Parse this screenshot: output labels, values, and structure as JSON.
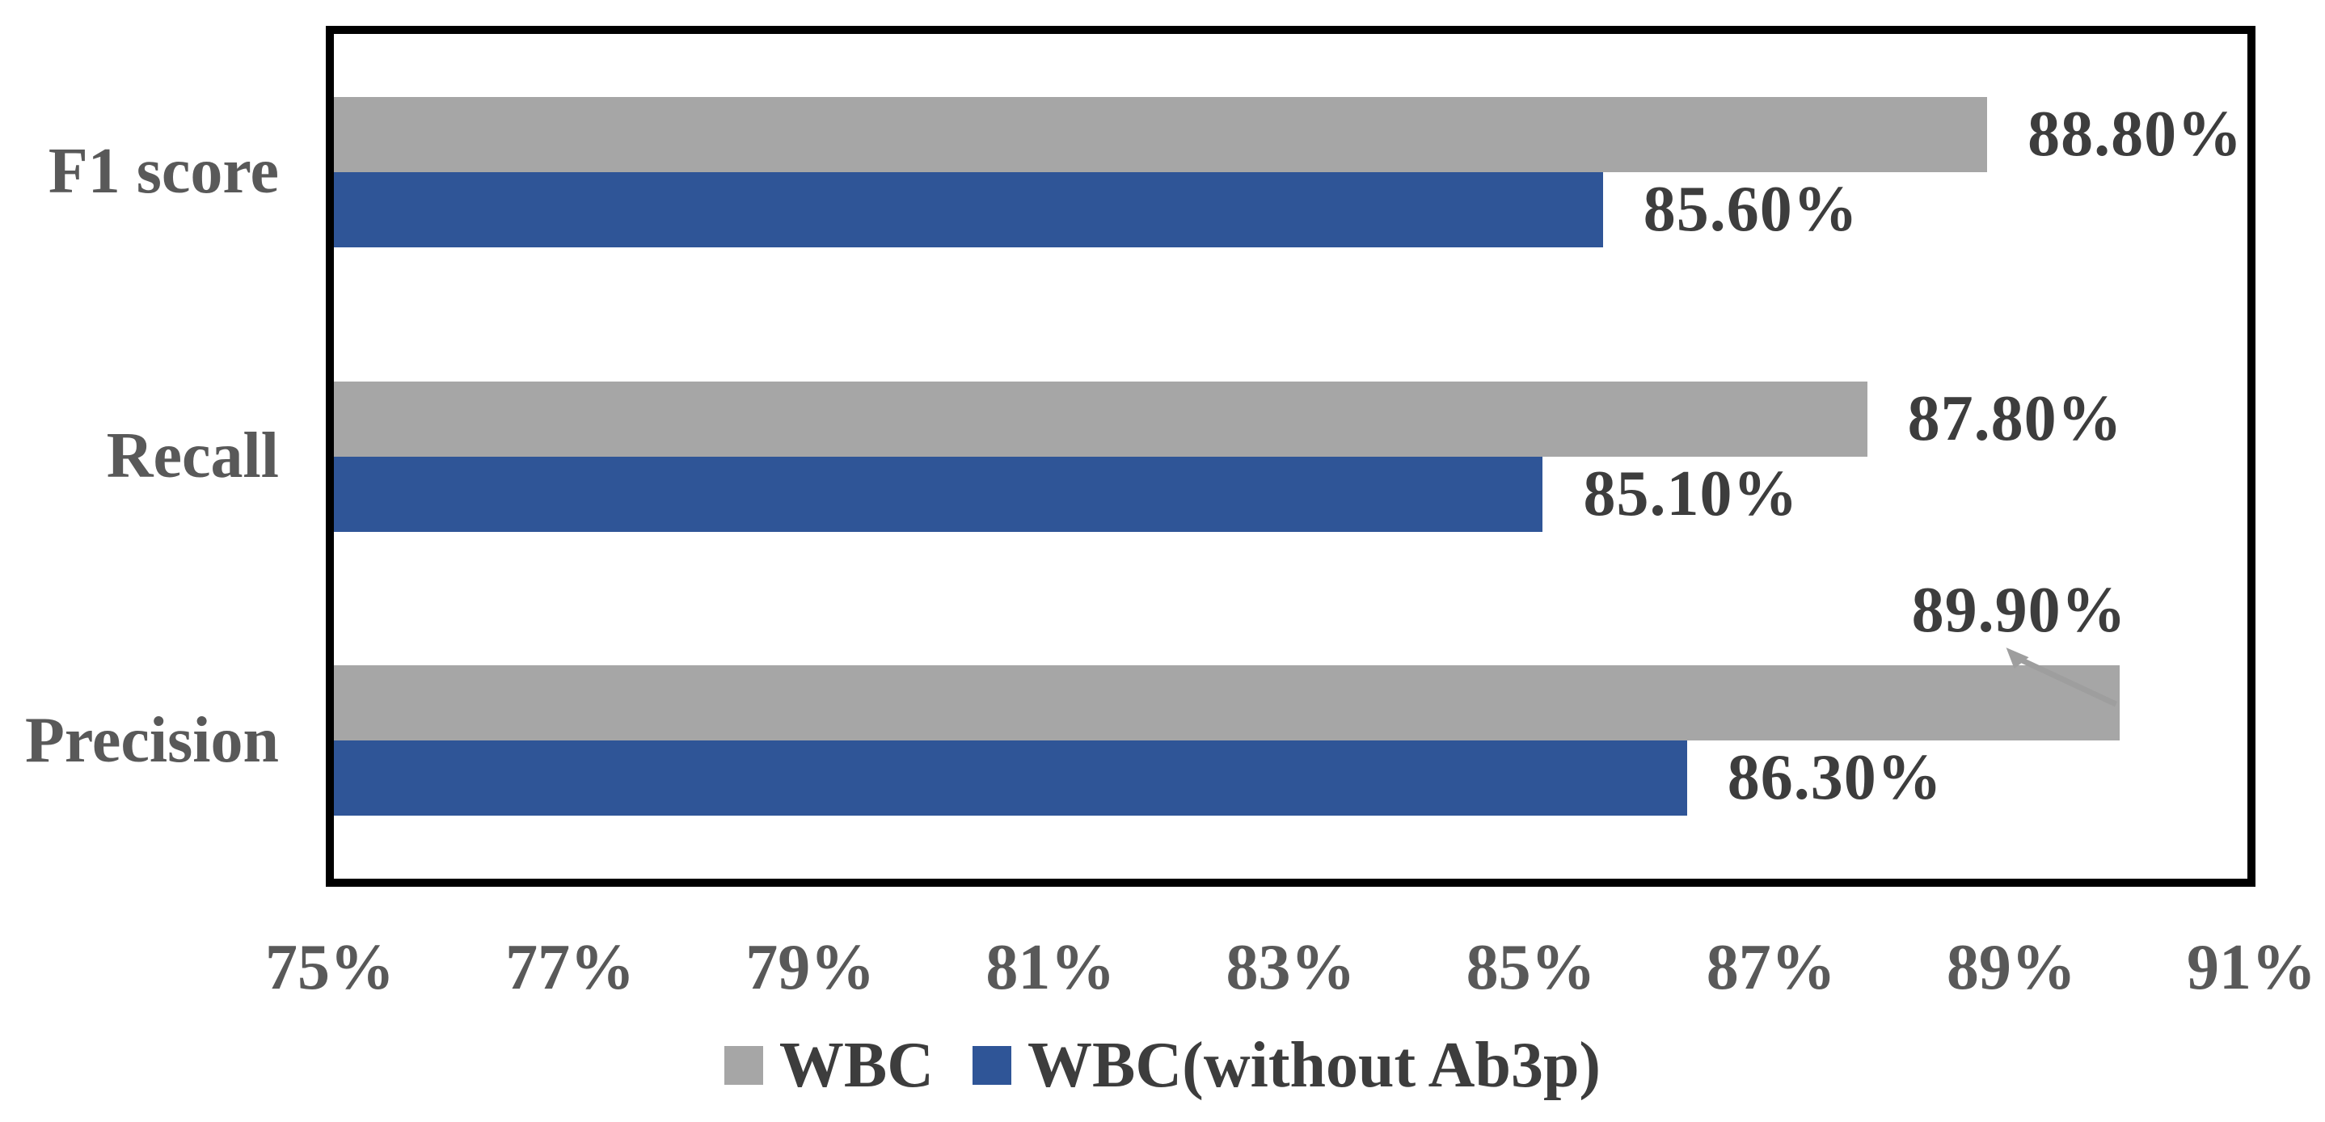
{
  "chart_data": {
    "type": "bar",
    "orientation": "horizontal",
    "title": "",
    "categories": [
      "F1 score",
      "Recall",
      "Precision"
    ],
    "series": [
      {
        "name": "WBC",
        "color": "#A6A6A6",
        "values": [
          88.8,
          87.8,
          89.9
        ],
        "value_labels": [
          "88.80%",
          "87.80%",
          "89.90%"
        ]
      },
      {
        "name": "WBC(without Ab3p)",
        "color": "#2F5597",
        "values": [
          85.6,
          85.1,
          86.3
        ],
        "value_labels": [
          "85.60%",
          "85.10%",
          "86.30%"
        ]
      }
    ],
    "x_axis": {
      "min": 75,
      "max": 91,
      "tick_step": 2,
      "tick_labels": [
        "75%",
        "77%",
        "79%",
        "81%",
        "83%",
        "85%",
        "87%",
        "89%",
        "91%"
      ]
    },
    "grid": false,
    "legend_position": "bottom",
    "callout": {
      "category_index": 2,
      "series_index": 0,
      "category": "Precision",
      "series": "WBC",
      "label": "89.90%",
      "placement": "above-bar-with-leader-line"
    }
  },
  "legend": {
    "items": [
      {
        "label": "WBC",
        "color": "#A6A6A6"
      },
      {
        "label": "WBC(without Ab3p)",
        "color": "#2F5597"
      }
    ]
  },
  "colors": {
    "background": "#FFFFFF",
    "bar_gray": "#A6A6A6",
    "bar_blue": "#2F5597",
    "plot_border": "#000000",
    "category_label_text": "#595959",
    "axis_label_text": "#595959",
    "value_label_text": "#3D3D3D",
    "legend_text": "#3D3D3D",
    "leader_line": "#9E9E9E"
  }
}
